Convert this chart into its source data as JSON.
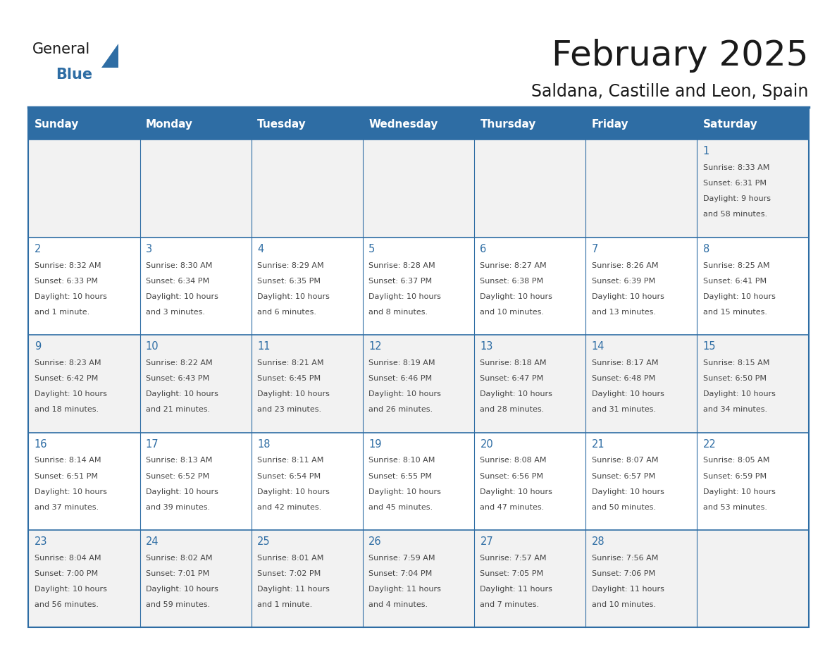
{
  "title": "February 2025",
  "subtitle": "Saldana, Castille and Leon, Spain",
  "days_of_week": [
    "Sunday",
    "Monday",
    "Tuesday",
    "Wednesday",
    "Thursday",
    "Friday",
    "Saturday"
  ],
  "header_bg": "#2E6DA4",
  "header_text": "#FFFFFF",
  "cell_bg_odd": "#FFFFFF",
  "cell_bg_even": "#F2F2F2",
  "border_color": "#2E6DA4",
  "cell_border_color": "#2E6DA4",
  "title_color": "#1a1a1a",
  "subtitle_color": "#1a1a1a",
  "day_number_color": "#2E6DA4",
  "cell_text_color": "#444444",
  "logo_general_color": "#1a1a1a",
  "logo_blue_color": "#2E6DA4",
  "calendar": [
    [
      {
        "day": "",
        "info": ""
      },
      {
        "day": "",
        "info": ""
      },
      {
        "day": "",
        "info": ""
      },
      {
        "day": "",
        "info": ""
      },
      {
        "day": "",
        "info": ""
      },
      {
        "day": "",
        "info": ""
      },
      {
        "day": "1",
        "info": "Sunrise: 8:33 AM\nSunset: 6:31 PM\nDaylight: 9 hours\nand 58 minutes."
      }
    ],
    [
      {
        "day": "2",
        "info": "Sunrise: 8:32 AM\nSunset: 6:33 PM\nDaylight: 10 hours\nand 1 minute."
      },
      {
        "day": "3",
        "info": "Sunrise: 8:30 AM\nSunset: 6:34 PM\nDaylight: 10 hours\nand 3 minutes."
      },
      {
        "day": "4",
        "info": "Sunrise: 8:29 AM\nSunset: 6:35 PM\nDaylight: 10 hours\nand 6 minutes."
      },
      {
        "day": "5",
        "info": "Sunrise: 8:28 AM\nSunset: 6:37 PM\nDaylight: 10 hours\nand 8 minutes."
      },
      {
        "day": "6",
        "info": "Sunrise: 8:27 AM\nSunset: 6:38 PM\nDaylight: 10 hours\nand 10 minutes."
      },
      {
        "day": "7",
        "info": "Sunrise: 8:26 AM\nSunset: 6:39 PM\nDaylight: 10 hours\nand 13 minutes."
      },
      {
        "day": "8",
        "info": "Sunrise: 8:25 AM\nSunset: 6:41 PM\nDaylight: 10 hours\nand 15 minutes."
      }
    ],
    [
      {
        "day": "9",
        "info": "Sunrise: 8:23 AM\nSunset: 6:42 PM\nDaylight: 10 hours\nand 18 minutes."
      },
      {
        "day": "10",
        "info": "Sunrise: 8:22 AM\nSunset: 6:43 PM\nDaylight: 10 hours\nand 21 minutes."
      },
      {
        "day": "11",
        "info": "Sunrise: 8:21 AM\nSunset: 6:45 PM\nDaylight: 10 hours\nand 23 minutes."
      },
      {
        "day": "12",
        "info": "Sunrise: 8:19 AM\nSunset: 6:46 PM\nDaylight: 10 hours\nand 26 minutes."
      },
      {
        "day": "13",
        "info": "Sunrise: 8:18 AM\nSunset: 6:47 PM\nDaylight: 10 hours\nand 28 minutes."
      },
      {
        "day": "14",
        "info": "Sunrise: 8:17 AM\nSunset: 6:48 PM\nDaylight: 10 hours\nand 31 minutes."
      },
      {
        "day": "15",
        "info": "Sunrise: 8:15 AM\nSunset: 6:50 PM\nDaylight: 10 hours\nand 34 minutes."
      }
    ],
    [
      {
        "day": "16",
        "info": "Sunrise: 8:14 AM\nSunset: 6:51 PM\nDaylight: 10 hours\nand 37 minutes."
      },
      {
        "day": "17",
        "info": "Sunrise: 8:13 AM\nSunset: 6:52 PM\nDaylight: 10 hours\nand 39 minutes."
      },
      {
        "day": "18",
        "info": "Sunrise: 8:11 AM\nSunset: 6:54 PM\nDaylight: 10 hours\nand 42 minutes."
      },
      {
        "day": "19",
        "info": "Sunrise: 8:10 AM\nSunset: 6:55 PM\nDaylight: 10 hours\nand 45 minutes."
      },
      {
        "day": "20",
        "info": "Sunrise: 8:08 AM\nSunset: 6:56 PM\nDaylight: 10 hours\nand 47 minutes."
      },
      {
        "day": "21",
        "info": "Sunrise: 8:07 AM\nSunset: 6:57 PM\nDaylight: 10 hours\nand 50 minutes."
      },
      {
        "day": "22",
        "info": "Sunrise: 8:05 AM\nSunset: 6:59 PM\nDaylight: 10 hours\nand 53 minutes."
      }
    ],
    [
      {
        "day": "23",
        "info": "Sunrise: 8:04 AM\nSunset: 7:00 PM\nDaylight: 10 hours\nand 56 minutes."
      },
      {
        "day": "24",
        "info": "Sunrise: 8:02 AM\nSunset: 7:01 PM\nDaylight: 10 hours\nand 59 minutes."
      },
      {
        "day": "25",
        "info": "Sunrise: 8:01 AM\nSunset: 7:02 PM\nDaylight: 11 hours\nand 1 minute."
      },
      {
        "day": "26",
        "info": "Sunrise: 7:59 AM\nSunset: 7:04 PM\nDaylight: 11 hours\nand 4 minutes."
      },
      {
        "day": "27",
        "info": "Sunrise: 7:57 AM\nSunset: 7:05 PM\nDaylight: 11 hours\nand 7 minutes."
      },
      {
        "day": "28",
        "info": "Sunrise: 7:56 AM\nSunset: 7:06 PM\nDaylight: 11 hours\nand 10 minutes."
      },
      {
        "day": "",
        "info": ""
      }
    ]
  ]
}
